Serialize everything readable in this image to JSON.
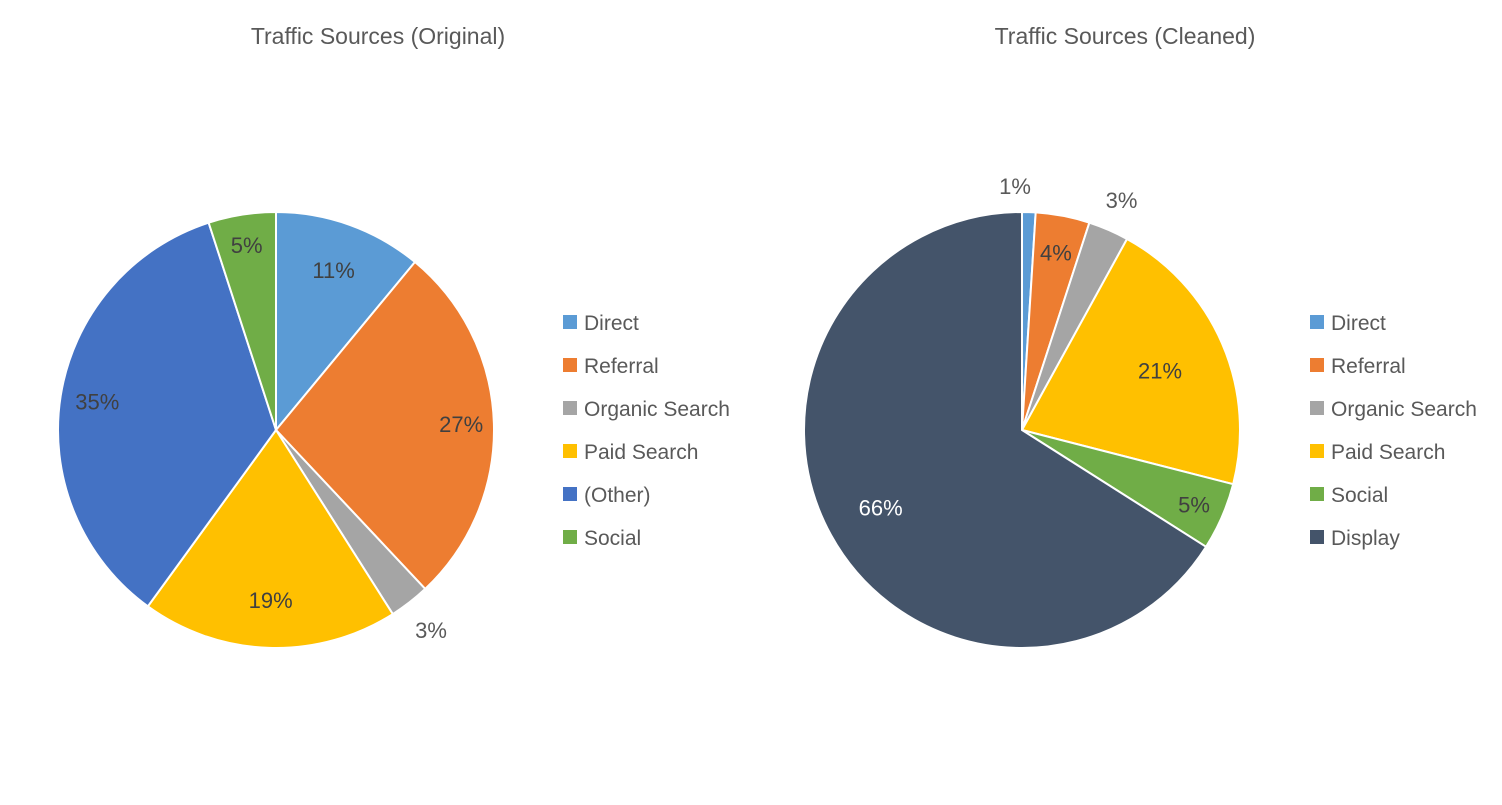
{
  "chart_data": [
    {
      "type": "pie",
      "title": "Traffic Sources (Original)",
      "categories": [
        "Direct",
        "Referral",
        "Organic Search",
        "Paid Search",
        "(Other)",
        "Social"
      ],
      "values": [
        11,
        27,
        3,
        19,
        35,
        5
      ],
      "labels": [
        "11%",
        "27%",
        "3%",
        "19%",
        "35%",
        "5%"
      ],
      "colors": [
        "#5b9bd5",
        "#ed7d31",
        "#a5a5a5",
        "#ffc000",
        "#4472c4",
        "#70ad47"
      ],
      "legend": "right"
    },
    {
      "type": "pie",
      "title": "Traffic Sources (Cleaned)",
      "categories": [
        "Direct",
        "Referral",
        "Organic Search",
        "Paid Search",
        "Social",
        "Display"
      ],
      "values": [
        1,
        4,
        3,
        21,
        5,
        66
      ],
      "labels": [
        "1%",
        "4%",
        "3%",
        "21%",
        "5%",
        "66%"
      ],
      "colors": [
        "#5b9bd5",
        "#ed7d31",
        "#a5a5a5",
        "#ffc000",
        "#70ad47",
        "#44546a"
      ],
      "legend": "right"
    }
  ]
}
